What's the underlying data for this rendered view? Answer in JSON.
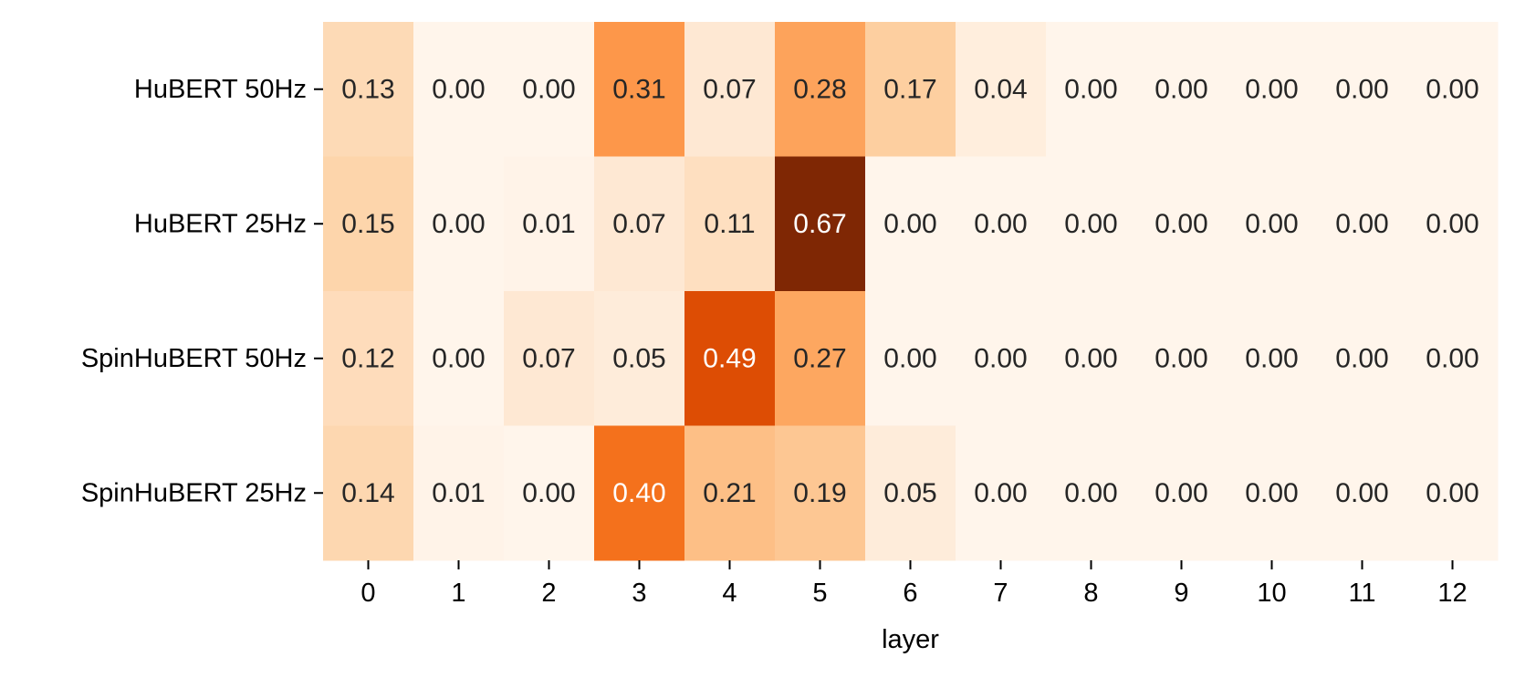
{
  "chart_data": {
    "type": "heatmap",
    "title": "",
    "xlabel": "layer",
    "ylabel": "",
    "grid": false,
    "legend": "none",
    "colormap": "Oranges",
    "value_format": "2-decimal",
    "x_categories": [
      "0",
      "1",
      "2",
      "3",
      "4",
      "5",
      "6",
      "7",
      "8",
      "9",
      "10",
      "11",
      "12"
    ],
    "y_categories": [
      "HuBERT 50Hz",
      "HuBERT 25Hz",
      "SpinHuBERT 50Hz",
      "SpinHuBERT 25Hz"
    ],
    "values": [
      [
        0.13,
        0.0,
        0.0,
        0.31,
        0.07,
        0.28,
        0.17,
        0.04,
        0.0,
        0.0,
        0.0,
        0.0,
        0.0
      ],
      [
        0.15,
        0.0,
        0.01,
        0.07,
        0.11,
        0.67,
        0.0,
        0.0,
        0.0,
        0.0,
        0.0,
        0.0,
        0.0
      ],
      [
        0.12,
        0.0,
        0.07,
        0.05,
        0.49,
        0.27,
        0.0,
        0.0,
        0.0,
        0.0,
        0.0,
        0.0,
        0.0
      ],
      [
        0.14,
        0.01,
        0.0,
        0.4,
        0.21,
        0.19,
        0.05,
        0.0,
        0.0,
        0.0,
        0.0,
        0.0,
        0.0
      ]
    ],
    "value_range": [
      0.0,
      0.67
    ],
    "colors": {
      "low": "#fff5eb",
      "high": "#7f2704",
      "text_dark": "#262626",
      "text_light": "#ffffff"
    }
  }
}
